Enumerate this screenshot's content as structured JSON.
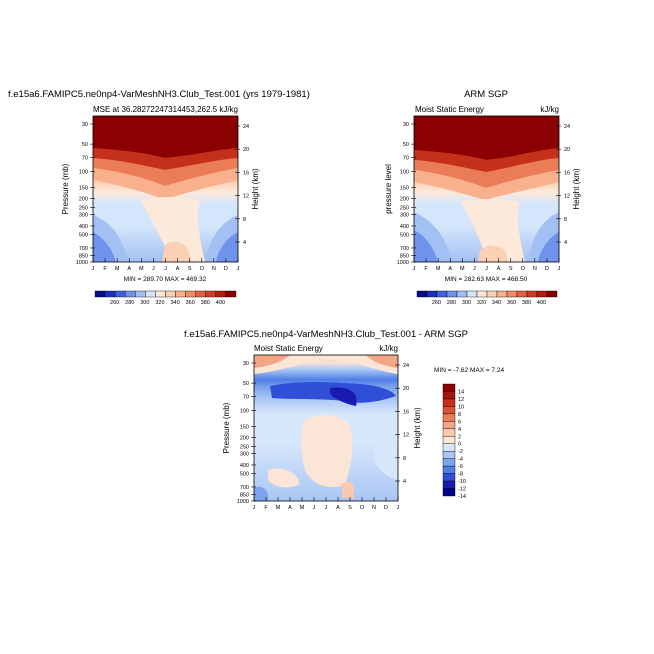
{
  "colors": {
    "model_scale": [
      "#0a0a8c",
      "#1b2fc4",
      "#3b63e0",
      "#6f93ec",
      "#a3c0f4",
      "#d4e6fb",
      "#fde9d9",
      "#fcd0b4",
      "#f8b18c",
      "#f28c65",
      "#e5613f",
      "#d43a22",
      "#b71c0e",
      "#8b0000"
    ],
    "diff_scale": [
      "#00008b",
      "#1a1ab0",
      "#2f4fd6",
      "#4f7fe6",
      "#7ba4ee",
      "#a9c6f5",
      "#d6e6fb",
      "#fbe5d6",
      "#f8c9ae",
      "#f3a683",
      "#ea7d58",
      "#da5533",
      "#c4301a",
      "#a8150a",
      "#8b0000"
    ]
  },
  "chart_data": [
    {
      "type": "heatmap",
      "panel": "model",
      "title": "f.e15a6.FAMIPC5.ne0np4-VarMeshNH3.Club_Test.001 (yrs 1979-1981)",
      "subtitle_left": "MSE at 36.28272247314453,262.5",
      "subtitle_right": "kJ/kg",
      "ylabel": "Pressure (mb)",
      "ylabel_right": "Height (km)",
      "xticks": [
        "J",
        "F",
        "M",
        "A",
        "M",
        "J",
        "J",
        "A",
        "S",
        "O",
        "N",
        "D",
        "J"
      ],
      "yticks": [
        "30",
        "50",
        "70",
        "100",
        "150",
        "200",
        "250",
        "300",
        "400",
        "500",
        "700",
        "850",
        "1000"
      ],
      "height_ticks": [
        "24",
        "20",
        "16",
        "12",
        "8",
        "4"
      ],
      "stats": "MIN = 289.70 MAX = 469.32",
      "colorbar_labels": [
        "260",
        "280",
        "300",
        "320",
        "340",
        "360",
        "380",
        "400"
      ],
      "ylim": [
        1000,
        30
      ],
      "xlim": [
        0,
        12
      ]
    },
    {
      "type": "heatmap",
      "panel": "obs",
      "title": "ARM SGP",
      "subtitle_left": "Moist Static Energy",
      "subtitle_right": "kJ/kg",
      "ylabel": "pressure level",
      "ylabel_right": "Height (km)",
      "xticks": [
        "J",
        "F",
        "M",
        "A",
        "M",
        "J",
        "J",
        "A",
        "S",
        "O",
        "N",
        "D",
        "J"
      ],
      "yticks": [
        "30",
        "50",
        "70",
        "100",
        "150",
        "200",
        "250",
        "300",
        "400",
        "500",
        "700",
        "850",
        "1000"
      ],
      "height_ticks": [
        "24",
        "20",
        "16",
        "12",
        "8",
        "4"
      ],
      "stats": "MIN = 282.63 MAX = 468.50",
      "colorbar_labels": [
        "260",
        "280",
        "300",
        "320",
        "340",
        "360",
        "380",
        "400"
      ],
      "ylim": [
        1000,
        30
      ],
      "xlim": [
        0,
        12
      ]
    },
    {
      "type": "heatmap",
      "panel": "diff",
      "title": "f.e15a6.FAMIPC5.ne0np4-VarMeshNH3.Club_Test.001 - ARM SGP",
      "subtitle_left": "Moist Static Energy",
      "subtitle_right": "kJ/kg",
      "ylabel": "Pressure (mb)",
      "ylabel_right": "Height (km)",
      "xticks": [
        "J",
        "F",
        "M",
        "A",
        "M",
        "J",
        "J",
        "A",
        "S",
        "O",
        "N",
        "D",
        "J"
      ],
      "yticks": [
        "30",
        "50",
        "70",
        "100",
        "150",
        "200",
        "250",
        "300",
        "400",
        "500",
        "700",
        "850",
        "1000"
      ],
      "height_ticks": [
        "24",
        "20",
        "16",
        "12",
        "8",
        "4"
      ],
      "stats": "MIN = -7.62 MAX = 7.24",
      "colorbar_labels": [
        "14",
        "12",
        "10",
        "8",
        "6",
        "4",
        "2",
        "0",
        "-2",
        "-4",
        "-6",
        "-8",
        "-10",
        "-12",
        "-14"
      ],
      "ylim": [
        1000,
        30
      ],
      "xlim": [
        0,
        12
      ]
    }
  ]
}
